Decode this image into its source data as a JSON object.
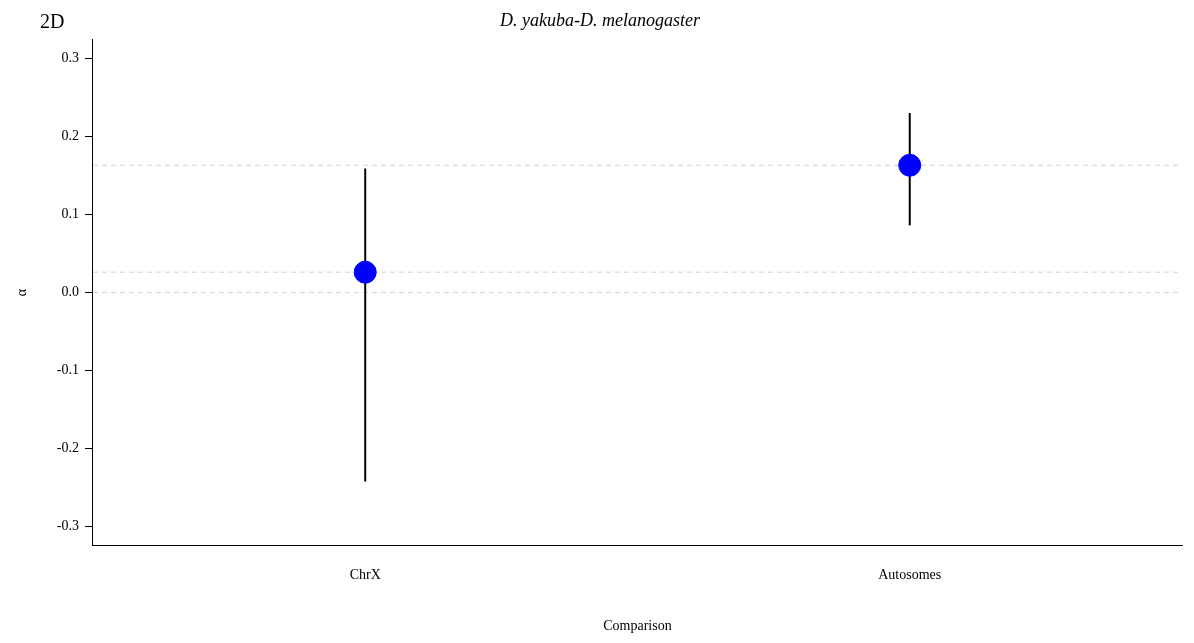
{
  "chart_data": {
    "type": "scatter",
    "title": "D. yakuba-D. melanogaster",
    "xlabel": "Comparison",
    "ylabel": "α",
    "annotations": [
      "2D"
    ],
    "categories": [
      "ChrX",
      "Autosomes"
    ],
    "series": [
      {
        "color": "#0000ff",
        "values": [
          0.026,
          0.163
        ],
        "errors": [
          [
            -0.242,
            0.159
          ],
          [
            0.086,
            0.23
          ]
        ]
      }
    ],
    "ylim": [
      -0.324,
      0.324
    ],
    "yticks": [
      -0.3,
      -0.2,
      -0.1,
      {
        "value": 0,
        "label": "0.0"
      },
      0.1,
      0.2,
      0.3
    ],
    "ref_lines": [
      {
        "axis": "y",
        "value": 0.163,
        "color": "#d3d3d3",
        "line_style": "dashed"
      },
      {
        "axis": "y",
        "value": 0.026,
        "color": "#d3d3d3",
        "line_style": "dashed"
      },
      {
        "axis": "y",
        "value": 0,
        "color": "#d3d3d3",
        "line_style": "dashed"
      }
    ],
    "grid": false,
    "legend": false,
    "marker": "circle"
  }
}
